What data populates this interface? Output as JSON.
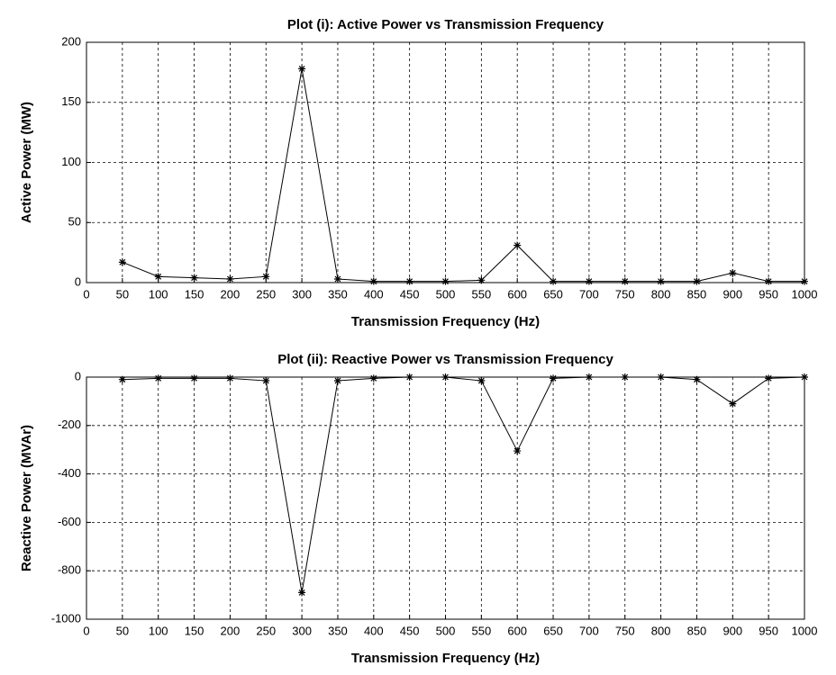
{
  "chart_data": [
    {
      "type": "line",
      "title": "Plot (i): Active Power vs Transmission Frequency",
      "xlabel": "Transmission Frequency (Hz)",
      "ylabel": "Active Power (MW)",
      "x": [
        50,
        100,
        150,
        200,
        250,
        300,
        350,
        400,
        450,
        500,
        550,
        600,
        650,
        700,
        750,
        800,
        850,
        900,
        950,
        1000
      ],
      "values": [
        17,
        5,
        4,
        3,
        5,
        178,
        3,
        1,
        1,
        1,
        2,
        31,
        1,
        1,
        1,
        1,
        1,
        8,
        1,
        1
      ],
      "color": "#000000",
      "xlim": [
        0,
        1000
      ],
      "xticks": [
        0,
        50,
        100,
        150,
        200,
        250,
        300,
        350,
        400,
        450,
        500,
        550,
        600,
        650,
        700,
        750,
        800,
        850,
        900,
        950,
        1000
      ],
      "ylim": [
        0,
        200
      ],
      "yticks": [
        0,
        50,
        100,
        150,
        200
      ],
      "grid": true
    },
    {
      "type": "line",
      "title": "Plot (ii): Reactive Power vs Transmission Frequency",
      "xlabel": "Transmission Frequency (Hz)",
      "ylabel": "Reactive Power (MVAr)",
      "x": [
        50,
        100,
        150,
        200,
        250,
        300,
        350,
        400,
        450,
        500,
        550,
        600,
        650,
        700,
        750,
        800,
        850,
        900,
        950,
        1000
      ],
      "values": [
        -10,
        -5,
        -5,
        -5,
        -15,
        -890,
        -15,
        -5,
        0,
        0,
        -15,
        -305,
        -5,
        0,
        0,
        0,
        -10,
        -110,
        -5,
        0
      ],
      "color": "#000000",
      "xlim": [
        0,
        1000
      ],
      "xticks": [
        0,
        50,
        100,
        150,
        200,
        250,
        300,
        350,
        400,
        450,
        500,
        550,
        600,
        650,
        700,
        750,
        800,
        850,
        900,
        950,
        1000
      ],
      "ylim": [
        -1000,
        0
      ],
      "yticks": [
        -1000,
        -800,
        -600,
        -400,
        -200,
        0
      ],
      "grid": true
    }
  ]
}
